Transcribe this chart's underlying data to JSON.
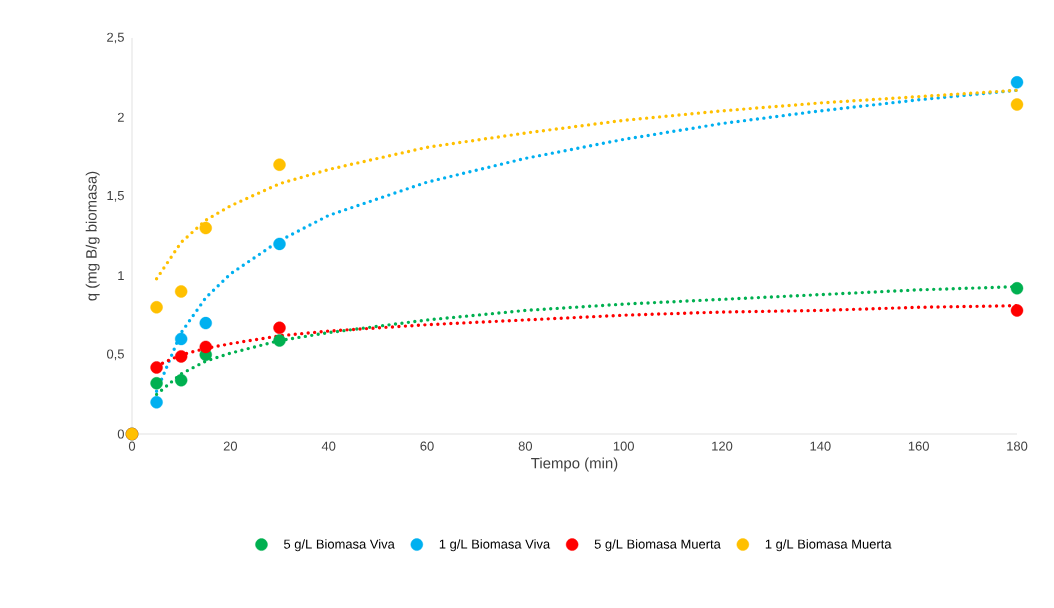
{
  "chart_data": {
    "type": "scatter",
    "xlabel": "Tiempo (min)",
    "ylabel": "q (mg B/g biomasa)",
    "xlim": [
      0,
      180
    ],
    "ylim": [
      0,
      2.5
    ],
    "xticks": [
      0,
      20,
      40,
      60,
      80,
      100,
      120,
      140,
      160,
      180
    ],
    "yticks": [
      0,
      {
        "value": 0.5,
        "label": "0,5"
      },
      1,
      {
        "value": 1.5,
        "label": "1,5"
      },
      2,
      {
        "value": 2.5,
        "label": "2,5"
      }
    ],
    "grid": false,
    "legend": "bottom",
    "series": [
      {
        "name": "5 g/L Biomasa Viva",
        "color": "#00b050",
        "marker": "circle",
        "x": [
          0,
          5,
          10,
          15,
          30,
          180
        ],
        "values": [
          0,
          0.32,
          0.34,
          0.5,
          0.59,
          0.92
        ]
      },
      {
        "name": "1 g/L Biomasa Viva",
        "color": "#00b0f0",
        "marker": "circle",
        "x": [
          0,
          5,
          10,
          15,
          30,
          180
        ],
        "values": [
          0,
          0.2,
          0.6,
          0.7,
          1.2,
          2.22
        ]
      },
      {
        "name": "5 g/L Biomasa Muerta",
        "color": "#ff0000",
        "marker": "circle",
        "x": [
          0,
          5,
          10,
          15,
          30,
          180
        ],
        "values": [
          0,
          0.42,
          0.49,
          0.55,
          0.67,
          0.78
        ]
      },
      {
        "name": "1 g/L Biomasa Muerta",
        "color": "#ffc000",
        "marker": "circle",
        "x": [
          0,
          5,
          10,
          15,
          30,
          180
        ],
        "values": [
          0,
          0.8,
          0.9,
          1.3,
          1.7,
          2.08
        ]
      },
      {
        "color": "#00b050",
        "type": "line",
        "line_style": "dotted",
        "marker": "none",
        "x": [
          5,
          10,
          15,
          20,
          30,
          40,
          60,
          80,
          100,
          120,
          140,
          160,
          180
        ],
        "values": [
          0.25,
          0.38,
          0.46,
          0.51,
          0.59,
          0.64,
          0.72,
          0.78,
          0.82,
          0.85,
          0.88,
          0.91,
          0.93
        ]
      },
      {
        "color": "#00b0f0",
        "type": "line",
        "line_style": "dotted",
        "marker": "none",
        "x": [
          5,
          10,
          15,
          20,
          30,
          40,
          60,
          80,
          100,
          120,
          140,
          160,
          180
        ],
        "values": [
          0.27,
          0.64,
          0.86,
          1.01,
          1.22,
          1.38,
          1.59,
          1.74,
          1.86,
          1.96,
          2.04,
          2.11,
          2.17
        ]
      },
      {
        "color": "#ff0000",
        "type": "line",
        "line_style": "dotted",
        "marker": "none",
        "x": [
          5,
          10,
          15,
          20,
          30,
          40,
          60,
          80,
          100,
          120,
          140,
          160,
          180
        ],
        "values": [
          0.43,
          0.5,
          0.54,
          0.57,
          0.62,
          0.65,
          0.69,
          0.72,
          0.75,
          0.77,
          0.78,
          0.8,
          0.81
        ]
      },
      {
        "color": "#ffc000",
        "type": "line",
        "line_style": "dotted",
        "marker": "none",
        "x": [
          5,
          10,
          15,
          20,
          30,
          40,
          60,
          80,
          100,
          120,
          140,
          160,
          180
        ],
        "values": [
          0.98,
          1.21,
          1.35,
          1.44,
          1.58,
          1.67,
          1.81,
          1.9,
          1.98,
          2.04,
          2.09,
          2.13,
          2.17
        ]
      }
    ]
  }
}
